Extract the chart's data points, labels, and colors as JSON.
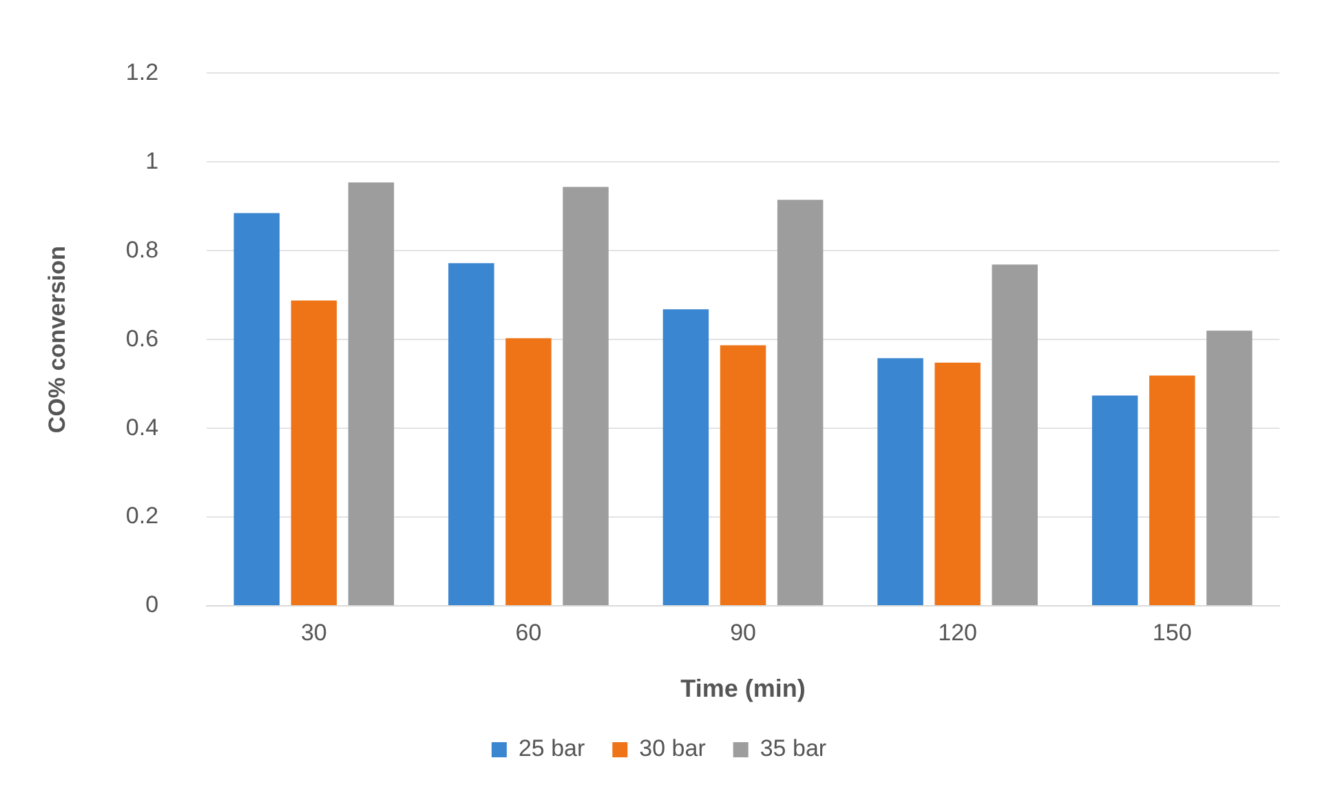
{
  "chart_data": {
    "type": "bar",
    "xlabel": "Time (min)",
    "ylabel": "CO% conversion",
    "categories": [
      "30",
      "60",
      "90",
      "120",
      "150"
    ],
    "series": [
      {
        "name": "25 bar",
        "color": "#3a86d0",
        "values": [
          0.885,
          0.772,
          0.668,
          0.558,
          0.474
        ]
      },
      {
        "name": "30 bar",
        "color": "#ee7417",
        "values": [
          0.688,
          0.603,
          0.587,
          0.548,
          0.519
        ]
      },
      {
        "name": "35 bar",
        "color": "#9d9d9d",
        "values": [
          0.954,
          0.944,
          0.915,
          0.769,
          0.62
        ]
      }
    ],
    "ylim": [
      0,
      1.2
    ],
    "yticks": [
      0,
      0.2,
      0.4,
      0.6,
      0.8,
      1,
      1.2
    ],
    "grid": "y",
    "legend": "bottom"
  }
}
